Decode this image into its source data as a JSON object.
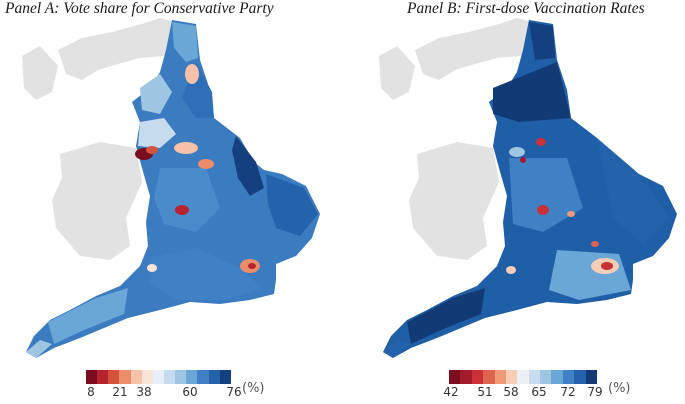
{
  "panels": [
    {
      "title": "Panel A: Vote share for Conservative Party",
      "legend": {
        "ticks": [
          "8",
          "21",
          "38",
          "60",
          "76"
        ],
        "unit": "(%)",
        "colors": [
          "#7a0d1e",
          "#b4232e",
          "#d6523d",
          "#ec8c69",
          "#f6c1a6",
          "#f7e3d8",
          "#e6eef7",
          "#c7dbef",
          "#9ec6e3",
          "#6aa6d6",
          "#3f81c4",
          "#2462ac",
          "#15407f"
        ]
      }
    },
    {
      "title": "Panel B: First-dose Vaccination Rates",
      "legend": {
        "ticks": [
          "42",
          "51",
          "58",
          "65",
          "72",
          "79"
        ],
        "unit": "(%)",
        "colors": [
          "#7a0d1e",
          "#a31a2a",
          "#c83237",
          "#de6450",
          "#ef9a79",
          "#f7cdb6",
          "#eceff4",
          "#c9dcee",
          "#9ec6e3",
          "#6aa6d6",
          "#3f81c4",
          "#2462ac",
          "#123b76"
        ]
      }
    }
  ],
  "chart_data": [
    {
      "type": "choropleth",
      "title": "Panel A: Vote share for Conservative Party",
      "region": "England (local authority districts)",
      "unit": "%",
      "legend_ticks": [
        8,
        21,
        38,
        60,
        76
      ],
      "range": [
        8,
        76
      ]
    },
    {
      "type": "choropleth",
      "title": "Panel B: First-dose Vaccination Rates",
      "region": "England (local authority districts)",
      "unit": "%",
      "legend_ticks": [
        42,
        51,
        58,
        65,
        72,
        79
      ],
      "range": [
        42,
        79
      ]
    }
  ]
}
